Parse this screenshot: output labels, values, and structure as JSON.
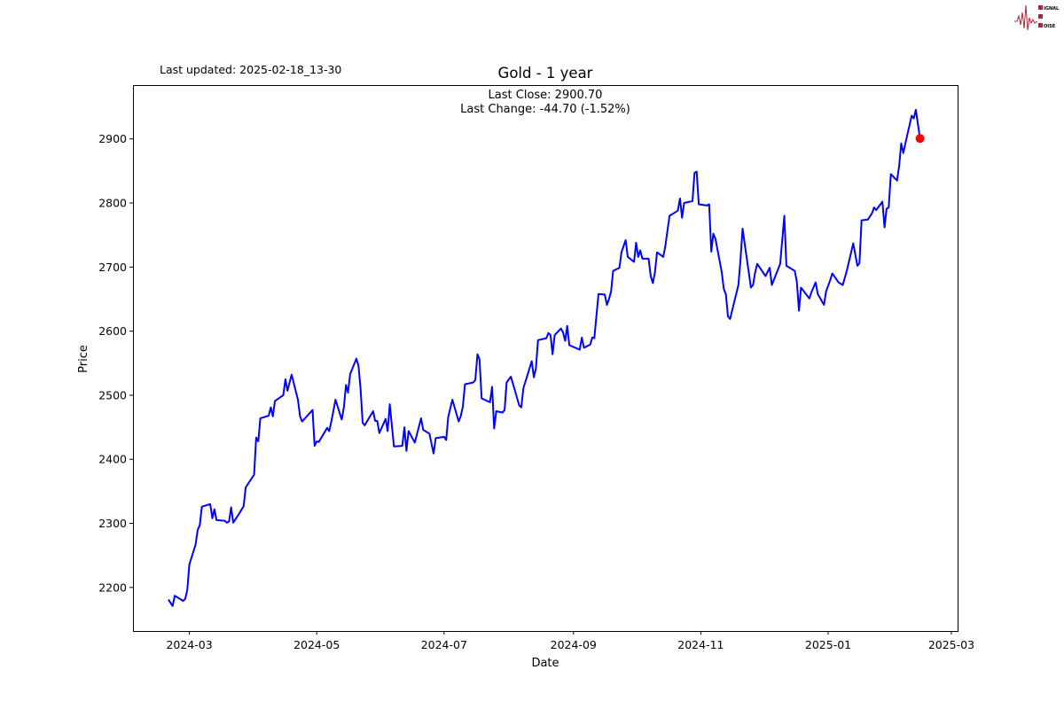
{
  "header": {
    "updated": "Last updated: 2025-02-18_13-30"
  },
  "logo": {
    "text": [
      "SIGNAL",
      "2",
      "NOISE"
    ],
    "color": "#b22234"
  },
  "chart_data": {
    "type": "line",
    "title": "Gold - 1 year",
    "annotation": [
      "Last Close: 2900.70",
      "Last Change: -44.70 (-1.52%)"
    ],
    "xlabel": "Date",
    "ylabel": "Price",
    "xlim": [
      "2024-02-03",
      "2025-03-04"
    ],
    "ylim": [
      2132,
      2984
    ],
    "xticks": [
      "2024-03",
      "2024-05",
      "2024-07",
      "2024-09",
      "2024-11",
      "2025-01",
      "2025-03"
    ],
    "yticks": [
      2200,
      2300,
      2400,
      2500,
      2600,
      2700,
      2800,
      2900
    ],
    "grid": false,
    "line_color": "#0000ff",
    "marker_color": "#ff0000",
    "last_point": {
      "date": "2025-02-14",
      "value": 2900.7
    },
    "series": [
      {
        "x": [
          "2024-02-20",
          "2024-02-22",
          "2024-02-23",
          "2024-02-27",
          "2024-02-28",
          "2024-02-29",
          "2024-03-01",
          "2024-03-04",
          "2024-03-05",
          "2024-03-06",
          "2024-03-07",
          "2024-03-11",
          "2024-03-12",
          "2024-03-13",
          "2024-03-14",
          "2024-03-18",
          "2024-03-19",
          "2024-03-20",
          "2024-03-21",
          "2024-03-22",
          "2024-03-25",
          "2024-03-27",
          "2024-03-28",
          "2024-04-01",
          "2024-04-02",
          "2024-04-03",
          "2024-04-04",
          "2024-04-08",
          "2024-04-09",
          "2024-04-10",
          "2024-04-11",
          "2024-04-15",
          "2024-04-16",
          "2024-04-17",
          "2024-04-19",
          "2024-04-22",
          "2024-04-23",
          "2024-04-24",
          "2024-04-26",
          "2024-04-29",
          "2024-04-30",
          "2024-05-01",
          "2024-05-02",
          "2024-05-06",
          "2024-05-07",
          "2024-05-08",
          "2024-05-10",
          "2024-05-13",
          "2024-05-14",
          "2024-05-15",
          "2024-05-16",
          "2024-05-17",
          "2024-05-20",
          "2024-05-21",
          "2024-05-22",
          "2024-05-23",
          "2024-05-24",
          "2024-05-28",
          "2024-05-29",
          "2024-05-30",
          "2024-05-31",
          "2024-06-03",
          "2024-06-04",
          "2024-06-05",
          "2024-06-07",
          "2024-06-11",
          "2024-06-12",
          "2024-06-13",
          "2024-06-14",
          "2024-06-17",
          "2024-06-20",
          "2024-06-21",
          "2024-06-24",
          "2024-06-26",
          "2024-06-27",
          "2024-07-01",
          "2024-07-02",
          "2024-07-03",
          "2024-07-05",
          "2024-07-08",
          "2024-07-09",
          "2024-07-10",
          "2024-07-11",
          "2024-07-15",
          "2024-07-16",
          "2024-07-17",
          "2024-07-18",
          "2024-07-19",
          "2024-07-23",
          "2024-07-24",
          "2024-07-25",
          "2024-07-26",
          "2024-07-29",
          "2024-07-30",
          "2024-07-31",
          "2024-08-02",
          "2024-08-06",
          "2024-08-07",
          "2024-08-08",
          "2024-08-12",
          "2024-08-13",
          "2024-08-14",
          "2024-08-15",
          "2024-08-19",
          "2024-08-20",
          "2024-08-21",
          "2024-08-22",
          "2024-08-23",
          "2024-08-26",
          "2024-08-27",
          "2024-08-28",
          "2024-08-29",
          "2024-08-30",
          "2024-09-04",
          "2024-09-05",
          "2024-09-06",
          "2024-09-09",
          "2024-09-10",
          "2024-09-11",
          "2024-09-13",
          "2024-09-16",
          "2024-09-17",
          "2024-09-18",
          "2024-09-19",
          "2024-09-20",
          "2024-09-23",
          "2024-09-24",
          "2024-09-26",
          "2024-09-27",
          "2024-09-30",
          "2024-10-01",
          "2024-10-02",
          "2024-10-03",
          "2024-10-04",
          "2024-10-07",
          "2024-10-08",
          "2024-10-09",
          "2024-10-10",
          "2024-10-11",
          "2024-10-14",
          "2024-10-15",
          "2024-10-17",
          "2024-10-21",
          "2024-10-22",
          "2024-10-23",
          "2024-10-24",
          "2024-10-28",
          "2024-10-29",
          "2024-10-30",
          "2024-10-31",
          "2024-11-04",
          "2024-11-05",
          "2024-11-06",
          "2024-11-07",
          "2024-11-08",
          "2024-11-11",
          "2024-11-12",
          "2024-11-13",
          "2024-11-14",
          "2024-11-15",
          "2024-11-19",
          "2024-11-20",
          "2024-11-21",
          "2024-11-25",
          "2024-11-26",
          "2024-11-27",
          "2024-11-28",
          "2024-12-02",
          "2024-12-04",
          "2024-12-05",
          "2024-12-09",
          "2024-12-11",
          "2024-12-12",
          "2024-12-16",
          "2024-12-17",
          "2024-12-18",
          "2024-12-19",
          "2024-12-23",
          "2024-12-24",
          "2024-12-26",
          "2024-12-27",
          "2024-12-30",
          "2024-12-31",
          "2025-01-02",
          "2025-01-03",
          "2025-01-06",
          "2025-01-08",
          "2025-01-10",
          "2025-01-13",
          "2025-01-15",
          "2025-01-16",
          "2025-01-17",
          "2025-01-20",
          "2025-01-22",
          "2025-01-23",
          "2025-01-24",
          "2025-01-27",
          "2025-01-28",
          "2025-01-29",
          "2025-01-30",
          "2025-01-31",
          "2025-02-03",
          "2025-02-04",
          "2025-02-05",
          "2025-02-06",
          "2025-02-07",
          "2025-02-10",
          "2025-02-11",
          "2025-02-12",
          "2025-02-14"
        ],
        "values": [
          2181,
          2171,
          2187,
          2179,
          2182,
          2196,
          2236,
          2267,
          2290,
          2297,
          2326,
          2330,
          2308,
          2322,
          2305,
          2304,
          2301,
          2303,
          2325,
          2301,
          2316,
          2327,
          2356,
          2376,
          2434,
          2428,
          2464,
          2468,
          2481,
          2467,
          2491,
          2500,
          2525,
          2507,
          2532,
          2493,
          2467,
          2459,
          2466,
          2477,
          2421,
          2428,
          2427,
          2449,
          2444,
          2459,
          2493,
          2462,
          2481,
          2516,
          2504,
          2533,
          2557,
          2546,
          2511,
          2457,
          2453,
          2475,
          2460,
          2460,
          2441,
          2463,
          2444,
          2486,
          2420,
          2421,
          2450,
          2413,
          2444,
          2426,
          2464,
          2446,
          2440,
          2409,
          2433,
          2435,
          2430,
          2466,
          2493,
          2459,
          2467,
          2482,
          2517,
          2520,
          2524,
          2564,
          2556,
          2495,
          2489,
          2513,
          2448,
          2475,
          2473,
          2477,
          2520,
          2529,
          2484,
          2481,
          2511,
          2553,
          2528,
          2542,
          2586,
          2589,
          2597,
          2594,
          2564,
          2594,
          2604,
          2598,
          2585,
          2608,
          2578,
          2571,
          2590,
          2574,
          2579,
          2590,
          2589,
          2658,
          2657,
          2641,
          2650,
          2662,
          2694,
          2699,
          2723,
          2742,
          2716,
          2708,
          2738,
          2716,
          2726,
          2713,
          2713,
          2686,
          2675,
          2691,
          2723,
          2716,
          2733,
          2780,
          2788,
          2807,
          2777,
          2800,
          2803,
          2847,
          2849,
          2798,
          2796,
          2798,
          2724,
          2752,
          2744,
          2693,
          2666,
          2657,
          2623,
          2619,
          2672,
          2711,
          2760,
          2668,
          2672,
          2691,
          2705,
          2686,
          2699,
          2672,
          2705,
          2780,
          2702,
          2694,
          2677,
          2632,
          2668,
          2651,
          2661,
          2676,
          2658,
          2641,
          2662,
          2680,
          2690,
          2676,
          2672,
          2695,
          2737,
          2702,
          2706,
          2773,
          2774,
          2784,
          2793,
          2789,
          2802,
          2762,
          2791,
          2793,
          2845,
          2835,
          2858,
          2893,
          2878,
          2893,
          2936,
          2932,
          2945.4,
          2900.7
        ]
      }
    ]
  }
}
